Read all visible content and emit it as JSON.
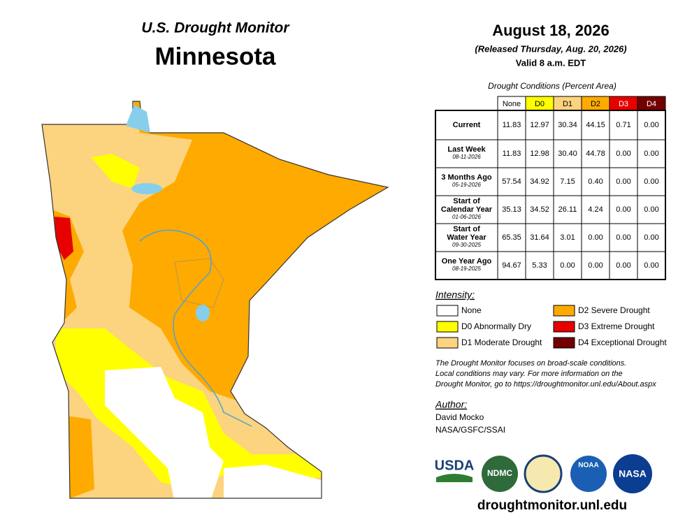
{
  "header": {
    "title": "U.S. Drought Monitor",
    "state": "Minnesota",
    "date": "August 18, 2026",
    "released": "(Released Thursday, Aug. 20, 2026)",
    "valid": "Valid 8 a.m. EDT"
  },
  "table": {
    "caption": "Drought Conditions (Percent Area)",
    "columns": [
      {
        "label": "None",
        "color": "#ffffff",
        "text_color": "#000000"
      },
      {
        "label": "D0",
        "color": "#ffff00",
        "text_color": "#000000"
      },
      {
        "label": "D1",
        "color": "#fcd37f",
        "text_color": "#000000"
      },
      {
        "label": "D2",
        "color": "#ffaa00",
        "text_color": "#000000"
      },
      {
        "label": "D3",
        "color": "#e60000",
        "text_color": "#ffffff"
      },
      {
        "label": "D4",
        "color": "#730000",
        "text_color": "#ffffff"
      }
    ],
    "rows": [
      {
        "label": [
          "Current"
        ],
        "values": [
          "11.83",
          "12.97",
          "30.34",
          "44.15",
          "0.71",
          "0.00"
        ]
      },
      {
        "label": [
          "Last Week"
        ],
        "date": "08-11-2026",
        "values": [
          "11.83",
          "12.98",
          "30.40",
          "44.78",
          "0.00",
          "0.00"
        ]
      },
      {
        "label": [
          "3 Months Ago"
        ],
        "date": "05-19-2026",
        "values": [
          "57.54",
          "34.92",
          "7.15",
          "0.40",
          "0.00",
          "0.00"
        ]
      },
      {
        "label": [
          "Start of",
          "Calendar Year"
        ],
        "date": "01-06-2026",
        "values": [
          "35.13",
          "34.52",
          "26.11",
          "4.24",
          "0.00",
          "0.00"
        ]
      },
      {
        "label": [
          "Start of",
          "Water Year"
        ],
        "date": "09-30-2025",
        "values": [
          "65.35",
          "31.64",
          "3.01",
          "0.00",
          "0.00",
          "0.00"
        ]
      },
      {
        "label": [
          "One Year Ago"
        ],
        "date": "08-19-2025",
        "values": [
          "94.67",
          "5.33",
          "0.00",
          "0.00",
          "0.00",
          "0.00"
        ]
      }
    ]
  },
  "legend": {
    "title": "Intensity:",
    "items": [
      {
        "label": "None",
        "color": "#ffffff"
      },
      {
        "label": "D0 Abnormally Dry",
        "color": "#ffff00"
      },
      {
        "label": "D1 Moderate Drought",
        "color": "#fcd37f"
      },
      {
        "label": "D2 Severe Drought",
        "color": "#ffaa00"
      },
      {
        "label": "D3 Extreme Drought",
        "color": "#e60000"
      },
      {
        "label": "D4 Exceptional Drought",
        "color": "#730000"
      }
    ]
  },
  "note": [
    "The Drought Monitor focuses on broad-scale conditions.",
    "Local conditions may vary. For more information on the",
    "Drought Monitor, go to https://droughtmonitor.unl.edu/About.aspx"
  ],
  "author": {
    "title": "Author:",
    "lines": [
      "David Mocko",
      "NASA/GSFC/SSAI"
    ]
  },
  "logos": [
    "USDA",
    "NDMC",
    "NOAA",
    "NASA"
  ],
  "footer": {
    "url": "droughtmonitor.unl.edu"
  }
}
